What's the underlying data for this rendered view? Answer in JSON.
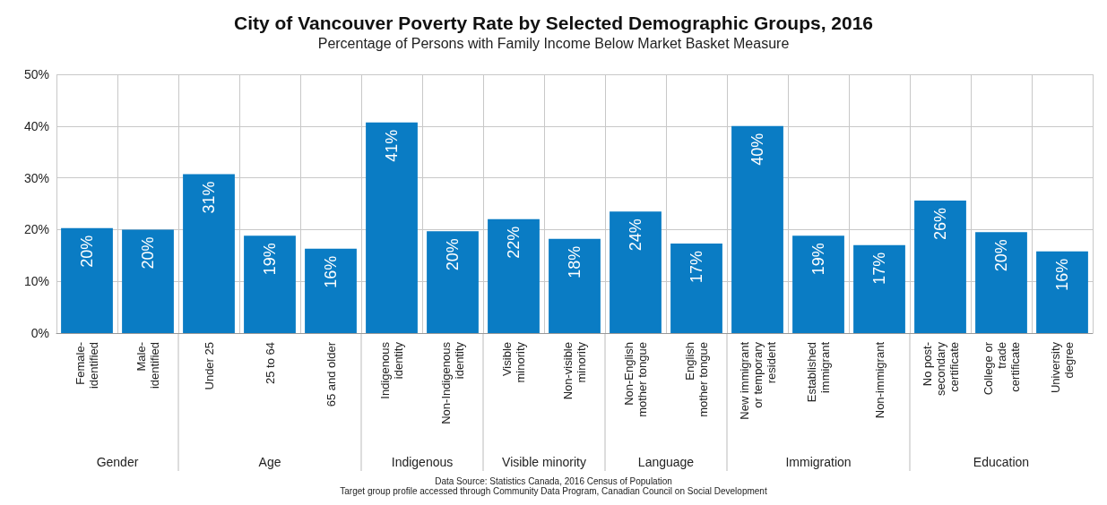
{
  "chart_data": {
    "type": "bar",
    "title": "City of Vancouver Poverty Rate by Selected Demographic Groups, 2016",
    "subtitle": "Percentage of Persons with Family Income Below Market Basket Measure",
    "categories": [
      "Female-\nidentified",
      "Male-\nidentified",
      "Under 25",
      "25 to 64",
      "65 and older",
      "Indigenous\nidentity",
      "Non-Indigenous\nidentity",
      "Visible\nminority",
      "Non-visible\nminority",
      "Non-English\nmother tongue",
      "English\nmother tongue",
      "New immigrant\nor temporary\nresident",
      "Established\nimmigrant",
      "Non-immigrant",
      "No post-\nsecondary\ncertificate",
      "College or\ntrade\ncertificate",
      "University\ndegree"
    ],
    "values": [
      20.3,
      20,
      30.7,
      18.8,
      16.3,
      40.7,
      19.7,
      22,
      18.2,
      23.5,
      17.3,
      40,
      18.8,
      17,
      25.6,
      19.5,
      15.8
    ],
    "value_labels": [
      "20%",
      "20%",
      "31%",
      "19%",
      "16%",
      "41%",
      "20%",
      "22%",
      "18%",
      "24%",
      "17%",
      "40%",
      "19%",
      "17%",
      "26%",
      "20%",
      "16%"
    ],
    "color": "#0a7cc4",
    "ylim": [
      0,
      50
    ],
    "yticks": [
      {
        "value": 0,
        "label": "0%"
      },
      {
        "value": 10,
        "label": "10%"
      },
      {
        "value": 20,
        "label": "20%"
      },
      {
        "value": 30,
        "label": "30%"
      },
      {
        "value": 40,
        "label": "40%"
      },
      {
        "value": 50,
        "label": "50%"
      }
    ],
    "grid": true,
    "annotations": [
      "Gender",
      "Age",
      "Indigenous",
      "Visible minority",
      "Language",
      "Immigration",
      "Education",
      "Data Source: Statistics Canada, 2016 Census of Population",
      "Target group profile accessed through Community Data Program, Canadian Council on Social Development"
    ]
  }
}
